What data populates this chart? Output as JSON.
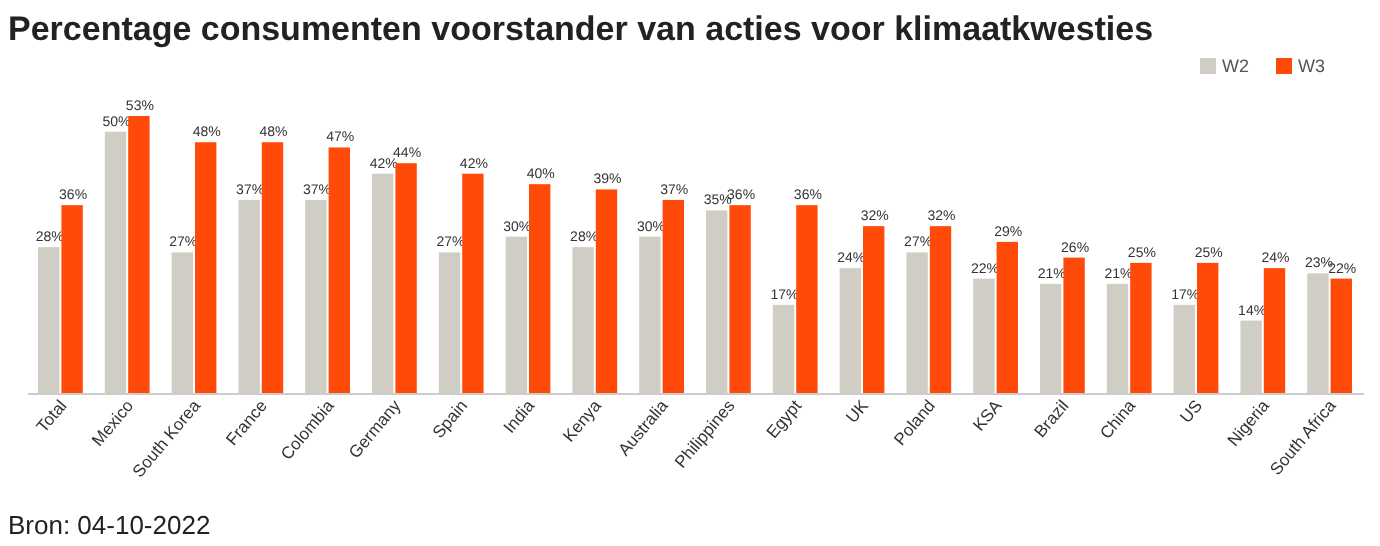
{
  "chart_data": {
    "type": "bar",
    "title": "Percentage consumenten voorstander van acties voor klimaatkwesties",
    "categories": [
      "Total",
      "Mexico",
      "South Korea",
      "France",
      "Colombia",
      "Germany",
      "Spain",
      "India",
      "Kenya",
      "Australia",
      "Philippines",
      "Egypt",
      "UK",
      "Poland",
      "KSA",
      "Brazil",
      "China",
      "US",
      "Nigeria",
      "South Africa"
    ],
    "series": [
      {
        "name": "W2",
        "color": "#d0cec4",
        "values": [
          28,
          50,
          27,
          37,
          37,
          42,
          27,
          30,
          28,
          30,
          35,
          17,
          24,
          27,
          22,
          21,
          21,
          17,
          14,
          23
        ],
        "value_labels": [
          "28%",
          "50%",
          "27%",
          "37%",
          "37%",
          "42%",
          "27%",
          "30%",
          "28%",
          "30%",
          "35%",
          "17%",
          "24%",
          "27%",
          "22%",
          "21%",
          "21%",
          "17%",
          "14%",
          "23%"
        ]
      },
      {
        "name": "W3",
        "color": "#ff4a0a",
        "values": [
          36,
          53,
          48,
          48,
          47,
          44,
          42,
          40,
          39,
          37,
          36,
          36,
          32,
          32,
          29,
          26,
          25,
          25,
          24,
          22
        ],
        "value_labels": [
          "36%",
          "53%",
          "48%",
          "48%",
          "47%",
          "44%",
          "42%",
          "40%",
          "39%",
          "37%",
          "36%",
          "36%",
          "32%",
          "32%",
          "29%",
          "26%",
          "25%",
          "25%",
          "24%",
          "22%"
        ]
      }
    ],
    "legend": "top right",
    "grid": false,
    "annotations": [
      "Bron: 04-10-2022"
    ]
  }
}
